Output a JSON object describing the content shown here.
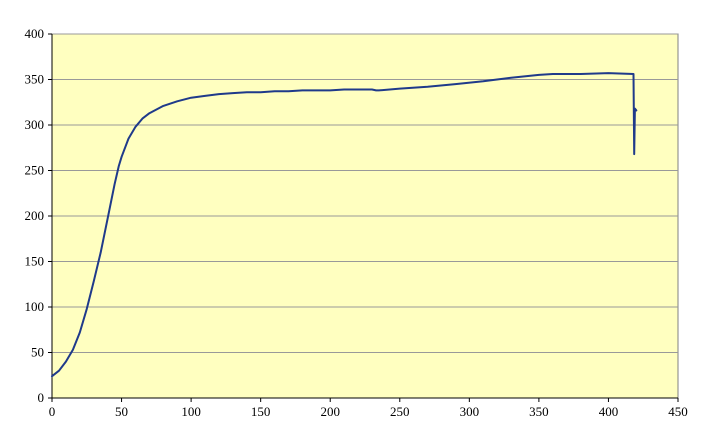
{
  "chart_data": {
    "type": "line",
    "title": "",
    "xlabel": "",
    "ylabel": "",
    "xlim": [
      0,
      450
    ],
    "ylim": [
      0,
      400
    ],
    "x_ticks": [
      0,
      50,
      100,
      150,
      200,
      250,
      300,
      350,
      400,
      450
    ],
    "y_ticks": [
      0,
      50,
      100,
      150,
      200,
      250,
      300,
      350,
      400
    ],
    "x_tick_labels": [
      "0",
      "50",
      "100",
      "150",
      "200",
      "250",
      "300",
      "350",
      "400",
      "450"
    ],
    "y_tick_labels": [
      "0",
      "50",
      "100",
      "150",
      "200",
      "250",
      "300",
      "350",
      "400"
    ],
    "grid": "horizontal",
    "legend": "none",
    "plot_background": "#FFFFC0",
    "grid_color": "#999999",
    "series": [
      {
        "color": "#1F3A8A",
        "x": [
          0,
          5,
          10,
          15,
          20,
          25,
          30,
          35,
          40,
          45,
          48,
          50,
          55,
          60,
          65,
          70,
          80,
          90,
          100,
          110,
          120,
          130,
          140,
          150,
          160,
          170,
          180,
          190,
          200,
          210,
          220,
          230,
          233,
          235,
          250,
          270,
          290,
          310,
          330,
          350,
          360,
          380,
          400,
          418,
          418.5,
          419,
          420
        ],
        "y": [
          24,
          30,
          40,
          53,
          72,
          98,
          128,
          160,
          197,
          235,
          255,
          265,
          285,
          298,
          307,
          313,
          321,
          326,
          330,
          332,
          334,
          335,
          336,
          336,
          337,
          337,
          338,
          338,
          338,
          339,
          339,
          339,
          338,
          338,
          340,
          342,
          345,
          348,
          352,
          355,
          356,
          356,
          357,
          356,
          268,
          318,
          316
        ]
      }
    ]
  }
}
